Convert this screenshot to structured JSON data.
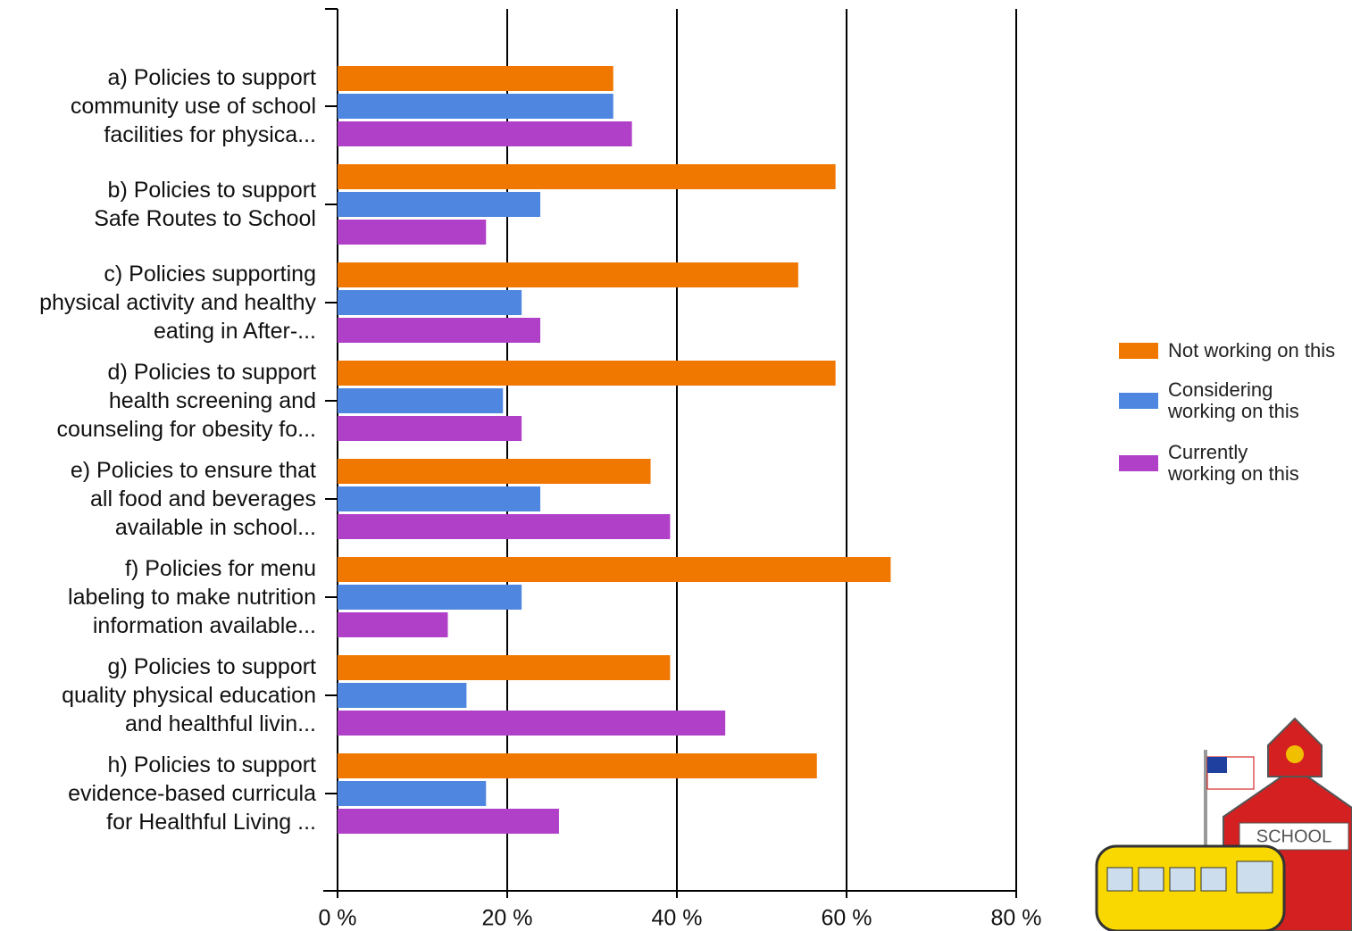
{
  "chart_data": {
    "type": "hbar",
    "categories": [
      "a) Policies to support\ncommunity use of school\nfacilities for physica...",
      "b) Policies to support\nSafe Routes to School",
      "c) Policies supporting\nphysical activity and healthy\neating in After-...",
      "d) Policies to support\nhealth screening and\ncounseling for obesity fo...",
      "e) Policies to ensure that\nall food and beverages\navailable in school...",
      "f) Policies for menu\nlabeling to make nutrition\ninformation available...",
      "g) Policies to support\nquality physical education\nand healthful livin...",
      "h) Policies to support\nevidence-based curricula\nfor Healthful Living ..."
    ],
    "series": [
      {
        "name": "Not working on this",
        "color": "#f07800",
        "values": [
          32.5,
          58.7,
          54.3,
          58.7,
          36.9,
          65.2,
          39.2,
          56.5
        ]
      },
      {
        "name": "Considering\nworking on this",
        "color": "#4f86e0",
        "values": [
          32.5,
          23.9,
          21.7,
          19.5,
          23.9,
          21.7,
          15.2,
          17.5
        ]
      },
      {
        "name": "Currently\nworking on this",
        "color": "#b040c8",
        "values": [
          34.7,
          17.5,
          23.9,
          21.7,
          39.2,
          13.0,
          45.7,
          26.1
        ]
      }
    ],
    "xlim": [
      0,
      80
    ],
    "xticks": [
      {
        "value": 0,
        "label": "0 %"
      },
      {
        "value": 20,
        "label": "20 %"
      },
      {
        "value": 40,
        "label": "40 %"
      },
      {
        "value": 60,
        "label": "60 %"
      },
      {
        "value": 80,
        "label": "80 %"
      }
    ],
    "grid": true,
    "legend": "right"
  },
  "decoration": {
    "sign": "SCHOOL"
  }
}
